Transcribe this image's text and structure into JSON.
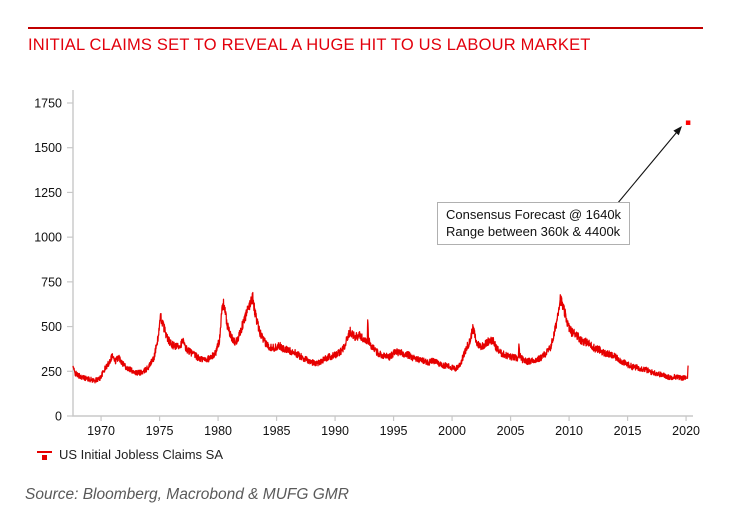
{
  "header": {
    "title": "INITIAL CLAIMS SET TO REVEAL A HUGE HIT TO US LABOUR MARKET",
    "title_color": "#e2000c",
    "rule_color": "#c10000"
  },
  "annotation": {
    "line1": "Consensus Forecast @ 1640k",
    "line2": "Range between 360k & 4400k"
  },
  "legend": {
    "label": "US Initial Jobless Claims SA",
    "marker_color": "#e60000"
  },
  "source": {
    "text": "Source: Bloomberg, Macrobond & MUFG GMR"
  },
  "chart_data": {
    "type": "line",
    "title": "INITIAL CLAIMS SET TO REVEAL A HUGE HIT TO US LABOUR MARKET",
    "xlabel": "",
    "ylabel": "",
    "x_ticks": [
      1970,
      1975,
      1980,
      1985,
      1990,
      1995,
      2000,
      2005,
      2010,
      2015,
      2020
    ],
    "y_ticks": [
      0,
      250,
      500,
      750,
      1000,
      1250,
      1500,
      1750
    ],
    "xlim": [
      1967.6,
      2020.7
    ],
    "ylim": [
      0,
      1822
    ],
    "grid": false,
    "legend_position": "bottom-left",
    "axis_color": "#c8c8c8",
    "units": "thousands of claims, weekly SA",
    "series": [
      {
        "name": "US Initial Jobless Claims SA",
        "color": "#e60000",
        "anchors": [
          [
            1967.6,
            280
          ],
          [
            1967.75,
            240
          ],
          [
            1968.1,
            225
          ],
          [
            1968.5,
            215
          ],
          [
            1969.0,
            205
          ],
          [
            1969.5,
            198
          ],
          [
            1969.9,
            210
          ],
          [
            1970.3,
            260
          ],
          [
            1970.7,
            300
          ],
          [
            1970.95,
            340
          ],
          [
            1971.2,
            305
          ],
          [
            1971.5,
            330
          ],
          [
            1971.8,
            300
          ],
          [
            1972.2,
            270
          ],
          [
            1972.6,
            255
          ],
          [
            1973.1,
            240
          ],
          [
            1973.6,
            245
          ],
          [
            1974.0,
            270
          ],
          [
            1974.5,
            320
          ],
          [
            1974.85,
            430
          ],
          [
            1975.1,
            555
          ],
          [
            1975.35,
            500
          ],
          [
            1975.7,
            430
          ],
          [
            1976.0,
            400
          ],
          [
            1976.4,
            385
          ],
          [
            1976.8,
            400
          ],
          [
            1977.0,
            420
          ],
          [
            1977.2,
            380
          ],
          [
            1977.6,
            360
          ],
          [
            1978.0,
            340
          ],
          [
            1978.4,
            320
          ],
          [
            1978.9,
            315
          ],
          [
            1979.4,
            325
          ],
          [
            1979.8,
            355
          ],
          [
            1980.1,
            420
          ],
          [
            1980.35,
            600
          ],
          [
            1980.5,
            630
          ],
          [
            1980.75,
            520
          ],
          [
            1981.1,
            440
          ],
          [
            1981.5,
            410
          ],
          [
            1981.9,
            470
          ],
          [
            1982.3,
            550
          ],
          [
            1982.7,
            620
          ],
          [
            1982.95,
            670
          ],
          [
            1983.15,
            580
          ],
          [
            1983.5,
            480
          ],
          [
            1983.9,
            420
          ],
          [
            1984.3,
            390
          ],
          [
            1984.8,
            380
          ],
          [
            1985.2,
            395
          ],
          [
            1985.6,
            375
          ],
          [
            1986.1,
            365
          ],
          [
            1986.5,
            355
          ],
          [
            1987.0,
            335
          ],
          [
            1987.5,
            315
          ],
          [
            1988.0,
            300
          ],
          [
            1988.5,
            295
          ],
          [
            1989.0,
            315
          ],
          [
            1989.5,
            330
          ],
          [
            1990.0,
            340
          ],
          [
            1990.4,
            355
          ],
          [
            1990.8,
            390
          ],
          [
            1991.1,
            445
          ],
          [
            1991.3,
            475
          ],
          [
            1991.6,
            450
          ],
          [
            1991.9,
            440
          ],
          [
            1992.1,
            455
          ],
          [
            1992.4,
            430
          ],
          [
            1992.75,
            420
          ],
          [
            1992.8,
            545
          ],
          [
            1992.85,
            425
          ],
          [
            1993.1,
            390
          ],
          [
            1993.5,
            360
          ],
          [
            1993.9,
            345
          ],
          [
            1994.3,
            335
          ],
          [
            1994.7,
            330
          ],
          [
            1995.1,
            360
          ],
          [
            1995.5,
            355
          ],
          [
            1995.9,
            345
          ],
          [
            1996.3,
            340
          ],
          [
            1996.7,
            325
          ],
          [
            1997.1,
            315
          ],
          [
            1997.5,
            310
          ],
          [
            1998.0,
            300
          ],
          [
            1998.4,
            310
          ],
          [
            1998.8,
            295
          ],
          [
            1999.2,
            285
          ],
          [
            1999.6,
            280
          ],
          [
            2000.0,
            270
          ],
          [
            2000.3,
            262
          ],
          [
            2000.7,
            290
          ],
          [
            2001.0,
            340
          ],
          [
            2001.3,
            390
          ],
          [
            2001.55,
            420
          ],
          [
            2001.75,
            490
          ],
          [
            2001.9,
            465
          ],
          [
            2002.1,
            405
          ],
          [
            2002.5,
            390
          ],
          [
            2002.9,
            405
          ],
          [
            2003.2,
            425
          ],
          [
            2003.5,
            420
          ],
          [
            2003.8,
            380
          ],
          [
            2004.2,
            350
          ],
          [
            2004.6,
            340
          ],
          [
            2005.0,
            330
          ],
          [
            2005.4,
            325
          ],
          [
            2005.65,
            320
          ],
          [
            2005.72,
            390
          ],
          [
            2005.79,
            335
          ],
          [
            2006.1,
            310
          ],
          [
            2006.5,
            305
          ],
          [
            2007.0,
            312
          ],
          [
            2007.5,
            320
          ],
          [
            2008.0,
            350
          ],
          [
            2008.4,
            380
          ],
          [
            2008.7,
            450
          ],
          [
            2008.95,
            530
          ],
          [
            2009.1,
            600
          ],
          [
            2009.25,
            660
          ],
          [
            2009.45,
            615
          ],
          [
            2009.7,
            560
          ],
          [
            2009.95,
            500
          ],
          [
            2010.2,
            470
          ],
          [
            2010.6,
            460
          ],
          [
            2011.0,
            425
          ],
          [
            2011.4,
            415
          ],
          [
            2011.8,
            400
          ],
          [
            2012.2,
            378
          ],
          [
            2012.6,
            370
          ],
          [
            2013.0,
            352
          ],
          [
            2013.4,
            345
          ],
          [
            2013.8,
            335
          ],
          [
            2014.2,
            320
          ],
          [
            2014.6,
            300
          ],
          [
            2015.0,
            288
          ],
          [
            2015.4,
            275
          ],
          [
            2015.8,
            270
          ],
          [
            2016.2,
            265
          ],
          [
            2016.6,
            258
          ],
          [
            2017.0,
            246
          ],
          [
            2017.4,
            240
          ],
          [
            2017.8,
            232
          ],
          [
            2018.2,
            225
          ],
          [
            2018.6,
            215
          ],
          [
            2019.0,
            220
          ],
          [
            2019.4,
            215
          ],
          [
            2019.8,
            213
          ],
          [
            2020.05,
            211
          ],
          [
            2020.12,
            211
          ],
          [
            2020.17,
            282
          ]
        ]
      }
    ],
    "forecast_point": {
      "x": 2020.17,
      "value": 1640,
      "color": "#ff0000"
    }
  }
}
